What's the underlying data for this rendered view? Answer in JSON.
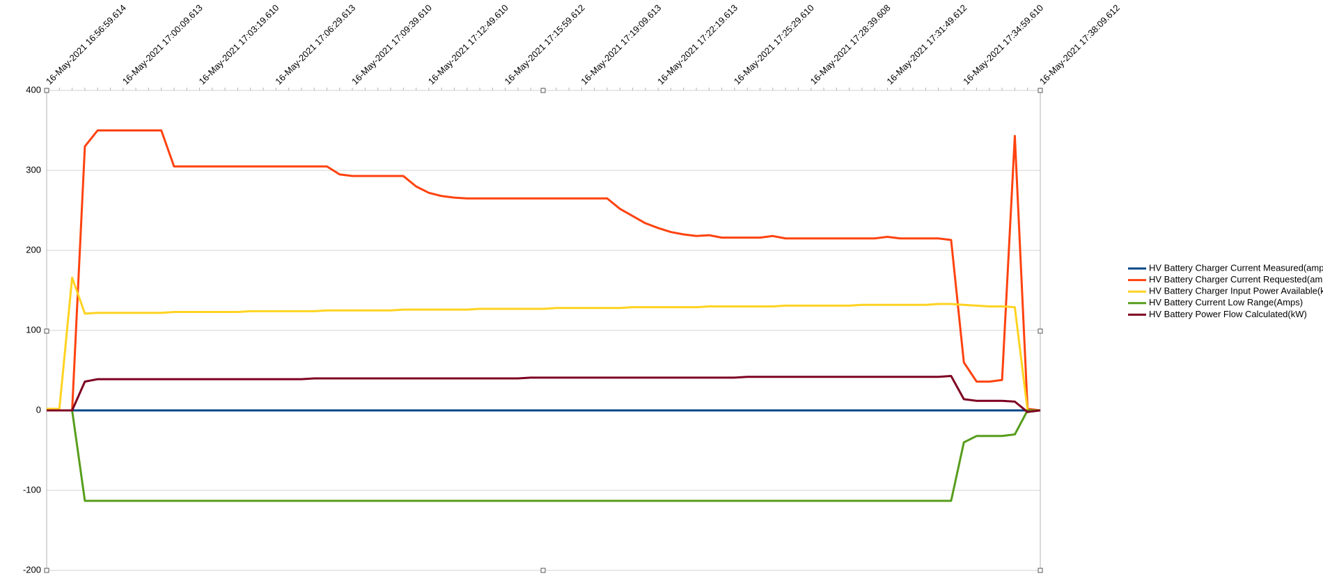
{
  "chart_data": {
    "type": "line",
    "categories": [
      "16-May-2021 16:56:59.614",
      null,
      null,
      null,
      null,
      null,
      "16-May-2021 17:00:09.613",
      null,
      null,
      null,
      null,
      null,
      "16-May-2021 17:03:19.610",
      null,
      null,
      null,
      null,
      null,
      "16-May-2021 17:06:29.613",
      null,
      null,
      null,
      null,
      null,
      "16-May-2021 17:09:39.610",
      null,
      null,
      null,
      null,
      null,
      "16-May-2021 17:12:49.610",
      null,
      null,
      null,
      null,
      null,
      "16-May-2021 17:15:59.612",
      null,
      null,
      null,
      null,
      null,
      "16-May-2021 17:19:09.613",
      null,
      null,
      null,
      null,
      null,
      "16-May-2021 17:22:19.613",
      null,
      null,
      null,
      null,
      null,
      "16-May-2021 17:25:29.610",
      null,
      null,
      null,
      null,
      null,
      "16-May-2021 17:28:39.608",
      null,
      null,
      null,
      null,
      null,
      "16-May-2021 17:31:49.612",
      null,
      null,
      null,
      null,
      null,
      "16-May-2021 17:34:59.610",
      null,
      null,
      null,
      null,
      null,
      "16-May-2021 17:38:09.612"
    ],
    "series": [
      {
        "name": "HV Battery Charger Current Measured(amps)",
        "color": "#004586",
        "values": [
          0,
          0,
          0,
          0,
          0,
          0,
          0,
          0,
          0,
          0,
          0,
          0,
          0,
          0,
          0,
          0,
          0,
          0,
          0,
          0,
          0,
          0,
          0,
          0,
          0,
          0,
          0,
          0,
          0,
          0,
          0,
          0,
          0,
          0,
          0,
          0,
          0,
          0,
          0,
          0,
          0,
          0,
          0,
          0,
          0,
          0,
          0,
          0,
          0,
          0,
          0,
          0,
          0,
          0,
          0,
          0,
          0,
          0,
          0,
          0,
          0,
          0,
          0,
          0,
          0,
          0,
          0,
          0,
          0,
          0,
          0,
          0,
          0,
          0,
          0,
          0,
          0,
          0,
          0
        ]
      },
      {
        "name": "HV Battery Charger Current Requested(amps)",
        "color": "#ff420e",
        "values": [
          0,
          0,
          0,
          330,
          350,
          350,
          350,
          350,
          350,
          350,
          305,
          305,
          305,
          305,
          305,
          305,
          305,
          305,
          305,
          305,
          305,
          305,
          305,
          295,
          293,
          293,
          293,
          293,
          293,
          280,
          272,
          268,
          266,
          265,
          265,
          265,
          265,
          265,
          265,
          265,
          265,
          265,
          265,
          265,
          265,
          252,
          243,
          234,
          228,
          223,
          220,
          218,
          219,
          216,
          216,
          216,
          216,
          218,
          215,
          215,
          215,
          215,
          215,
          215,
          215,
          215,
          217,
          215,
          215,
          215,
          215,
          213,
          60,
          36,
          36,
          38,
          343,
          2,
          0
        ]
      },
      {
        "name": "HV Battery Charger Input Power Available(kW)",
        "color": "#ffd320",
        "values": [
          2,
          2,
          166,
          121,
          122,
          122,
          122,
          122,
          122,
          122,
          123,
          123,
          123,
          123,
          123,
          123,
          124,
          124,
          124,
          124,
          124,
          124,
          125,
          125,
          125,
          125,
          125,
          125,
          126,
          126,
          126,
          126,
          126,
          126,
          127,
          127,
          127,
          127,
          127,
          127,
          128,
          128,
          128,
          128,
          128,
          128,
          129,
          129,
          129,
          129,
          129,
          129,
          130,
          130,
          130,
          130,
          130,
          130,
          131,
          131,
          131,
          131,
          131,
          131,
          132,
          132,
          132,
          132,
          132,
          132,
          133,
          133,
          132,
          131,
          130,
          130,
          129,
          0,
          0
        ]
      },
      {
        "name": "HV Battery Current Low Range(Amps)",
        "color": "#579d1c",
        "values": [
          0,
          0,
          0,
          -113,
          -113,
          -113,
          -113,
          -113,
          -113,
          -113,
          -113,
          -113,
          -113,
          -113,
          -113,
          -113,
          -113,
          -113,
          -113,
          -113,
          -113,
          -113,
          -113,
          -113,
          -113,
          -113,
          -113,
          -113,
          -113,
          -113,
          -113,
          -113,
          -113,
          -113,
          -113,
          -113,
          -113,
          -113,
          -113,
          -113,
          -113,
          -113,
          -113,
          -113,
          -113,
          -113,
          -113,
          -113,
          -113,
          -113,
          -113,
          -113,
          -113,
          -113,
          -113,
          -113,
          -113,
          -113,
          -113,
          -113,
          -113,
          -113,
          -113,
          -113,
          -113,
          -113,
          -113,
          -113,
          -113,
          -113,
          -113,
          -113,
          -40,
          -32,
          -32,
          -32,
          -30,
          0,
          0
        ]
      },
      {
        "name": "HV Battery Power Flow Calculated(kW)",
        "color": "#7e0021",
        "values": [
          0,
          0,
          0,
          36,
          39,
          39,
          39,
          39,
          39,
          39,
          39,
          39,
          39,
          39,
          39,
          39,
          39,
          39,
          39,
          39,
          39,
          40,
          40,
          40,
          40,
          40,
          40,
          40,
          40,
          40,
          40,
          40,
          40,
          40,
          40,
          40,
          40,
          40,
          41,
          41,
          41,
          41,
          41,
          41,
          41,
          41,
          41,
          41,
          41,
          41,
          41,
          41,
          41,
          41,
          41,
          42,
          42,
          42,
          42,
          42,
          42,
          42,
          42,
          42,
          42,
          42,
          42,
          42,
          42,
          42,
          42,
          43,
          14,
          12,
          12,
          12,
          11,
          -2,
          0
        ]
      }
    ],
    "ylim": [
      -200,
      400
    ],
    "yticks": [
      -200,
      -100,
      0,
      100,
      200,
      300,
      400
    ],
    "grid": true,
    "legend": "right"
  }
}
